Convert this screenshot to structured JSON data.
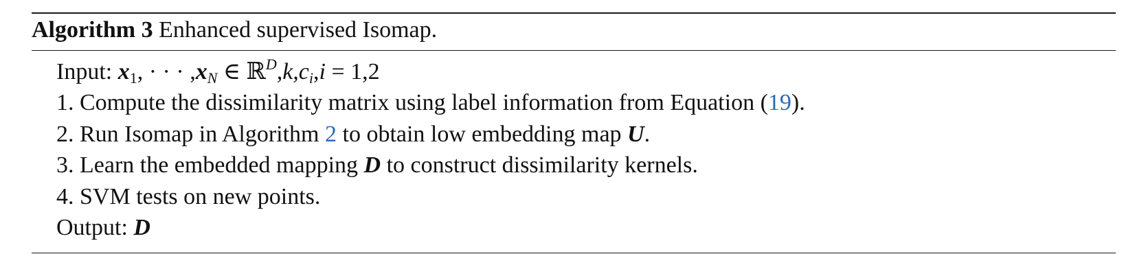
{
  "algorithm": {
    "label": "Algorithm 3",
    "title": "Enhanced supervised Isomap.",
    "input": {
      "prefix": "Input:",
      "x": "x",
      "sub1": "1",
      "sep1": ", ",
      "dots": "· · ·",
      "sep2": " ,",
      "subN": "N",
      "in": " ∈ ",
      "reals": "ℝ",
      "supD": "D",
      "k": ",k,",
      "c": "c",
      "subi": "i",
      "tail": ",",
      "i": "i",
      "eq": " = 1,2"
    },
    "steps": [
      {
        "before": "1. Compute the dissimilarity matrix using label information from Equation (",
        "ref": "19",
        "after": ")."
      },
      {
        "before": "2. Run Isomap in Algorithm ",
        "ref": "2",
        "middle": " to obtain low embedding map ",
        "symbol": "U",
        "after": "."
      },
      {
        "before": "3. Learn the embedded mapping ",
        "symbol": "D",
        "after": " to construct dissimilarity kernels."
      },
      {
        "text": "4. SVM tests on new points."
      }
    ],
    "output": {
      "prefix": "Output: ",
      "symbol": "D"
    }
  }
}
